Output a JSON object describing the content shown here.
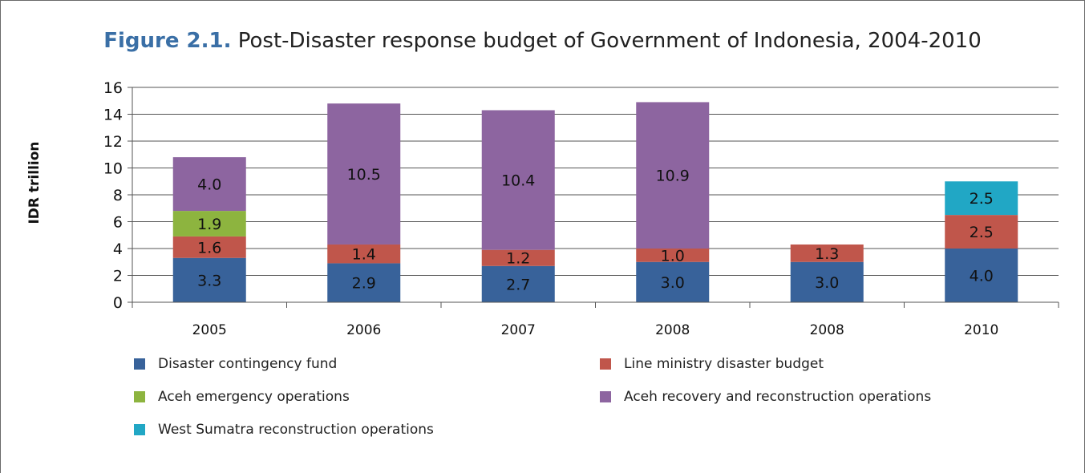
{
  "title": {
    "number": "Figure 2.1.",
    "text": " Post-Disaster response budget of Government of Indonesia, 2004-2010"
  },
  "chart_data": {
    "type": "bar",
    "stacked": true,
    "title": "Figure 2.1. Post-Disaster response budget of Government of Indonesia, 2004-2010",
    "xlabel": "",
    "ylabel": "IDR trillion",
    "ylim": [
      0,
      16
    ],
    "yticks": [
      "0",
      "2",
      "4",
      "6",
      "8",
      "10",
      "12",
      "14",
      "16"
    ],
    "grid": true,
    "legend_position": "bottom",
    "categories": [
      "2005",
      "2006",
      "2007",
      "2008",
      "2008",
      "2010"
    ],
    "series": [
      {
        "name": "Disaster contingency fund",
        "color": "#38629a",
        "values": [
          3.3,
          2.9,
          2.7,
          3.0,
          3.0,
          4.0
        ],
        "labels": [
          "3.3",
          "2.9",
          "2.7",
          "3.0",
          "3.0",
          "4.0"
        ]
      },
      {
        "name": "Line ministry disaster budget",
        "color": "#c0564b",
        "values": [
          1.6,
          1.4,
          1.2,
          1.0,
          1.3,
          2.5
        ],
        "labels": [
          "1.6",
          "1.4",
          "1.2",
          "1.0",
          "1.3",
          "2.5"
        ]
      },
      {
        "name": "Aceh emergency operations",
        "color": "#8db43f",
        "values": [
          1.9,
          0,
          0,
          0,
          0,
          0
        ],
        "labels": [
          "1.9",
          "",
          "",
          "",
          "",
          ""
        ]
      },
      {
        "name": "Aceh recovery and reconstruction operations",
        "color": "#8d65a0",
        "values": [
          4.0,
          10.5,
          10.4,
          10.9,
          0,
          0
        ],
        "labels": [
          "4.0",
          "10.5",
          "10.4",
          "10.9",
          "",
          ""
        ]
      },
      {
        "name": "West Sumatra reconstruction operations",
        "color": "#21a7c5",
        "values": [
          0,
          0,
          0,
          0,
          0,
          2.5
        ],
        "labels": [
          "",
          "",
          "",
          "",
          "",
          "2.5"
        ]
      }
    ]
  }
}
